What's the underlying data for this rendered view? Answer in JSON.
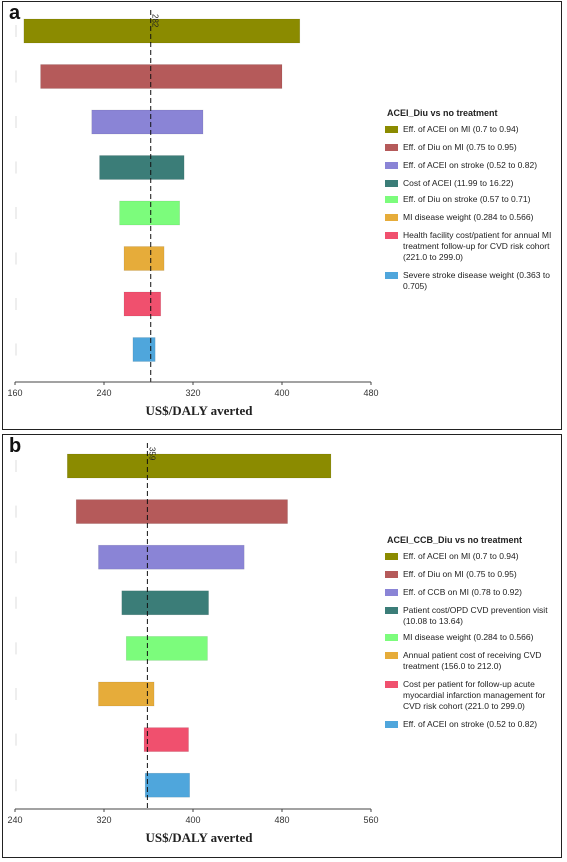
{
  "chart_data": [
    {
      "type": "bar",
      "orientation": "horizontal",
      "panel": "a",
      "title": "ACEI_Diu vs no treatment",
      "xlabel": "US$/DALY averted",
      "xlim": [
        160,
        480
      ],
      "xticks": [
        "160",
        "240",
        "320",
        "400",
        "480"
      ],
      "reference_value": 282,
      "reference_label": "282",
      "series": [
        {
          "name": "Eff. of ACEI on MI (0.7 to 0.94)",
          "low": 168,
          "high": 416,
          "color": "#8b8b00"
        },
        {
          "name": "Eff. of Diu on MI (0.75 to 0.95)",
          "low": 183,
          "high": 400,
          "color": "#b55a5a"
        },
        {
          "name": "Eff. of ACEI on stroke (0.52 to 0.82)",
          "low": 229,
          "high": 329,
          "color": "#8a84d6"
        },
        {
          "name": "Cost of ACEI (11.99 to 16.22)",
          "low": 236,
          "high": 312,
          "color": "#3b7d78"
        },
        {
          "name": "Eff. of Diu on stroke (0.57 to 0.71)",
          "low": 254,
          "high": 308,
          "color": "#7cfc7c"
        },
        {
          "name": "MI disease weight (0.284 to 0.566)",
          "low": 258,
          "high": 294,
          "color": "#e6ac3a"
        },
        {
          "name": "Health facility cost/patient  for annual MI treatment follow-up for CVD risk cohort (221.0 to 299.0)",
          "low": 258,
          "high": 291,
          "color": "#f0506e"
        },
        {
          "name": "Severe stroke disease weight (0.363 to 0.705)",
          "low": 266,
          "high": 286,
          "color": "#4fa6dc"
        }
      ]
    },
    {
      "type": "bar",
      "orientation": "horizontal",
      "panel": "b",
      "title": "ACEI_CCB_Diu vs no treatment",
      "xlabel": "US$/DALY averted",
      "xlim": [
        240,
        560
      ],
      "xticks": [
        "240",
        "320",
        "400",
        "480",
        "560"
      ],
      "reference_value": 359,
      "reference_label": "359",
      "series": [
        {
          "name": "Eff. of ACEI on MI (0.7 to 0.94)",
          "low": 287,
          "high": 524,
          "color": "#8b8b00"
        },
        {
          "name": "Eff. of Diu on MI (0.75 to 0.95)",
          "low": 295,
          "high": 485,
          "color": "#b55a5a"
        },
        {
          "name": "Eff. of CCB on MI (0.78 to 0.92)",
          "low": 315,
          "high": 446,
          "color": "#8a84d6"
        },
        {
          "name": "Patient cost/OPD CVD prevention visit (10.08 to 13.64)",
          "low": 336,
          "high": 414,
          "color": "#3b7d78"
        },
        {
          "name": "MI disease weight (0.284 to 0.566)",
          "low": 340,
          "high": 413,
          "color": "#7cfc7c"
        },
        {
          "name": "Annual patient cost of receiving CVD treatment (156.0 to 212.0)",
          "low": 315,
          "high": 365,
          "color": "#e6ac3a"
        },
        {
          "name": "Cost per patient  for follow-up acute myocardial infarction management for CVD risk cohort (221.0 to 299.0)",
          "low": 356,
          "high": 396,
          "color": "#f0506e"
        },
        {
          "name": "Eff. of ACEI on stroke (0.52 to 0.82)",
          "low": 357,
          "high": 397,
          "color": "#4fa6dc"
        }
      ]
    }
  ],
  "panels": [
    {
      "letter": "a"
    },
    {
      "letter": "b"
    }
  ]
}
